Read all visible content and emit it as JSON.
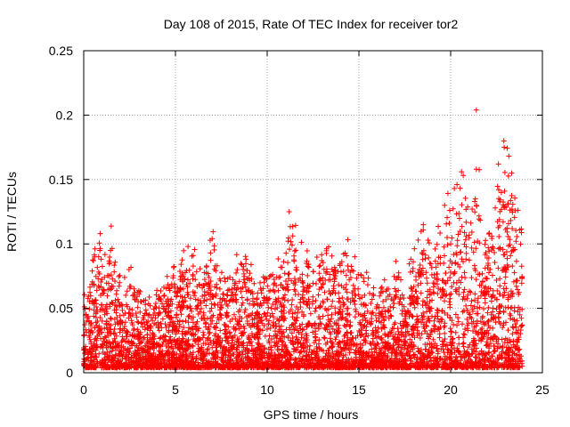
{
  "chart_data": {
    "type": "scatter",
    "title": "Day 108 of 2015, Rate Of TEC Index for receiver tor2",
    "xlabel": "GPS time / hours",
    "ylabel": "ROTI / TECUs",
    "xlim": [
      0,
      25
    ],
    "ylim": [
      0,
      0.25
    ],
    "xticks": [
      0,
      5,
      10,
      15,
      20,
      25
    ],
    "yticks": [
      0,
      0.05,
      0.1,
      0.15,
      0.2,
      0.25
    ],
    "xtick_labels": [
      "0",
      "5",
      "10",
      "15",
      "20",
      "25"
    ],
    "ytick_labels": [
      "0",
      "0.05",
      "0.1",
      "0.15",
      "0.2",
      "0.25"
    ],
    "grid": true,
    "marker": "plus",
    "color": "#ff0000",
    "data_range_hours": [
      0,
      23.9
    ],
    "envelope": [
      {
        "x": 0.0,
        "y": 0.068
      },
      {
        "x": 0.3,
        "y": 0.06
      },
      {
        "x": 0.6,
        "y": 0.095
      },
      {
        "x": 0.9,
        "y": 0.108
      },
      {
        "x": 1.2,
        "y": 0.08
      },
      {
        "x": 1.5,
        "y": 0.1
      },
      {
        "x": 2.0,
        "y": 0.075
      },
      {
        "x": 2.5,
        "y": 0.078
      },
      {
        "x": 3.0,
        "y": 0.07
      },
      {
        "x": 3.5,
        "y": 0.05
      },
      {
        "x": 4.0,
        "y": 0.065
      },
      {
        "x": 4.5,
        "y": 0.075
      },
      {
        "x": 5.0,
        "y": 0.08
      },
      {
        "x": 5.5,
        "y": 0.095
      },
      {
        "x": 6.0,
        "y": 0.09
      },
      {
        "x": 6.5,
        "y": 0.07
      },
      {
        "x": 7.0,
        "y": 0.104
      },
      {
        "x": 7.5,
        "y": 0.075
      },
      {
        "x": 8.0,
        "y": 0.07
      },
      {
        "x": 8.5,
        "y": 0.09
      },
      {
        "x": 9.0,
        "y": 0.088
      },
      {
        "x": 9.5,
        "y": 0.065
      },
      {
        "x": 10.0,
        "y": 0.087
      },
      {
        "x": 10.5,
        "y": 0.075
      },
      {
        "x": 11.0,
        "y": 0.095
      },
      {
        "x": 11.3,
        "y": 0.125
      },
      {
        "x": 11.7,
        "y": 0.085
      },
      {
        "x": 12.0,
        "y": 0.1
      },
      {
        "x": 12.5,
        "y": 0.085
      },
      {
        "x": 13.0,
        "y": 0.09
      },
      {
        "x": 13.5,
        "y": 0.095
      },
      {
        "x": 14.0,
        "y": 0.1
      },
      {
        "x": 14.5,
        "y": 0.095
      },
      {
        "x": 15.0,
        "y": 0.075
      },
      {
        "x": 15.5,
        "y": 0.07
      },
      {
        "x": 16.0,
        "y": 0.06
      },
      {
        "x": 16.5,
        "y": 0.07
      },
      {
        "x": 17.0,
        "y": 0.08
      },
      {
        "x": 17.5,
        "y": 0.055
      },
      {
        "x": 18.0,
        "y": 0.1
      },
      {
        "x": 18.5,
        "y": 0.12
      },
      {
        "x": 19.0,
        "y": 0.09
      },
      {
        "x": 19.5,
        "y": 0.11
      },
      {
        "x": 20.0,
        "y": 0.13
      },
      {
        "x": 20.3,
        "y": 0.14
      },
      {
        "x": 20.7,
        "y": 0.15
      },
      {
        "x": 21.0,
        "y": 0.12
      },
      {
        "x": 21.4,
        "y": 0.17
      },
      {
        "x": 21.8,
        "y": 0.12
      },
      {
        "x": 22.2,
        "y": 0.11
      },
      {
        "x": 22.6,
        "y": 0.15
      },
      {
        "x": 23.0,
        "y": 0.18
      },
      {
        "x": 23.4,
        "y": 0.13
      },
      {
        "x": 23.9,
        "y": 0.11
      }
    ],
    "outliers": [
      {
        "x": 21.4,
        "y": 0.204
      },
      {
        "x": 22.9,
        "y": 0.18
      },
      {
        "x": 21.4,
        "y": 0.158
      },
      {
        "x": 20.2,
        "y": 0.143
      },
      {
        "x": 11.2,
        "y": 0.125
      },
      {
        "x": 0.9,
        "y": 0.108
      },
      {
        "x": 7.0,
        "y": 0.104
      }
    ],
    "baseline_min": 0.004,
    "num_points": 5200
  }
}
